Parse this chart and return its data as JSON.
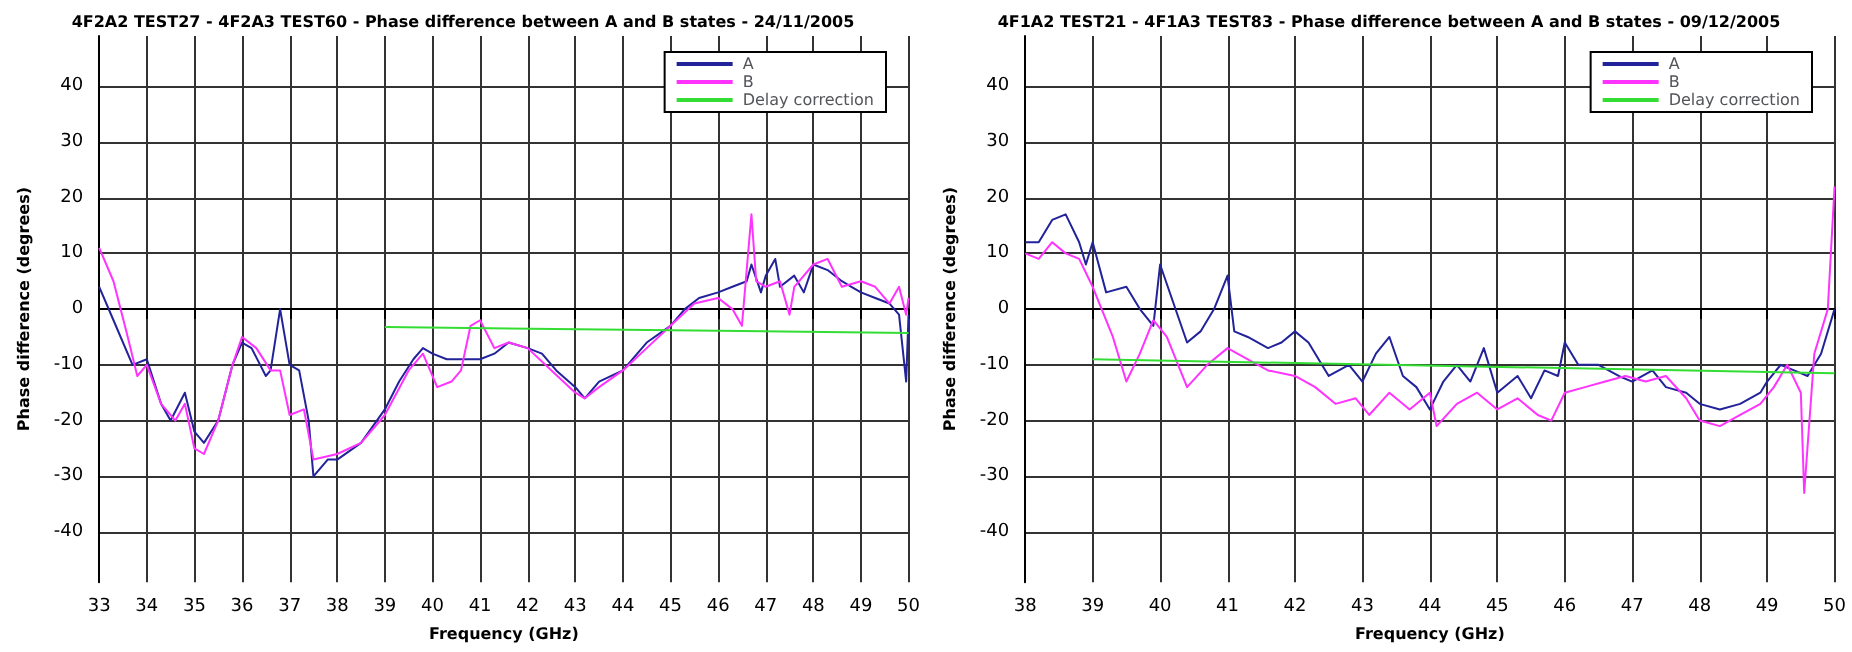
{
  "chart_data": [
    {
      "type": "line",
      "title": "4F2A2 TEST27 - 4F2A3 TEST60 - Phase difference between A and B states - 24/11/2005",
      "xlabel": "Frequency (GHz)",
      "ylabel": "Phase difference (degrees)",
      "xlim": [
        33,
        50
      ],
      "xticks": [
        33,
        34,
        35,
        36,
        37,
        38,
        39,
        40,
        41,
        42,
        43,
        44,
        45,
        46,
        47,
        48,
        49,
        50
      ],
      "ylim": [
        -49,
        49
      ],
      "yticks": [
        -40,
        -30,
        -20,
        -10,
        0,
        10,
        20,
        30,
        40
      ],
      "grid": true,
      "legend": "top right",
      "marker": "none",
      "line_style": "solid",
      "series": [
        {
          "name": "A",
          "color": "#22229a",
          "x": [
            33,
            33.3,
            33.7,
            34,
            34.3,
            34.5,
            34.8,
            35,
            35.2,
            35.5,
            35.8,
            36,
            36.2,
            36.5,
            36.6,
            36.8,
            37,
            37.2,
            37.4,
            37.5,
            37.8,
            38,
            38.5,
            39,
            39.3,
            39.6,
            39.8,
            40,
            40.3,
            40.6,
            41,
            41.3,
            41.6,
            42,
            42.3,
            42.6,
            43,
            43.2,
            43.5,
            44,
            44.5,
            45,
            45.3,
            45.6,
            46,
            46.3,
            46.6,
            46.7,
            46.9,
            47,
            47.2,
            47.3,
            47.6,
            47.8,
            48,
            48.3,
            48.6,
            48.8,
            49,
            49.3,
            49.6,
            49.8,
            49.95,
            50
          ],
          "values": [
            4,
            -2,
            -10,
            -9,
            -17,
            -20,
            -15,
            -22,
            -24,
            -20,
            -10,
            -6,
            -7,
            -12,
            -11,
            0,
            -10,
            -11,
            -20,
            -30,
            -27,
            -27,
            -24,
            -18,
            -13,
            -9,
            -7,
            -8,
            -9,
            -9,
            -9,
            -8,
            -6,
            -7,
            -8,
            -11,
            -14,
            -16,
            -13,
            -11,
            -6,
            -3,
            0,
            2,
            3,
            4,
            5,
            8,
            3,
            6,
            9,
            4,
            6,
            3,
            8,
            7,
            5,
            4,
            3,
            2,
            1,
            -1,
            -13,
            -1
          ]
        },
        {
          "name": "B",
          "color": "#ff33ff",
          "x": [
            33,
            33.3,
            33.6,
            33.8,
            34,
            34.3,
            34.6,
            34.8,
            35,
            35.2,
            35.5,
            35.8,
            36,
            36.3,
            36.6,
            36.8,
            37,
            37.3,
            37.5,
            38,
            38.5,
            39,
            39.5,
            39.8,
            40.1,
            40.4,
            40.6,
            40.8,
            41,
            41.3,
            41.6,
            42,
            42.5,
            43,
            43.2,
            43.5,
            44,
            44.5,
            45,
            45.5,
            46,
            46.3,
            46.5,
            46.7,
            46.8,
            47,
            47.3,
            47.5,
            47.6,
            48,
            48.3,
            48.6,
            49,
            49.3,
            49.6,
            49.8,
            49.95,
            50
          ],
          "values": [
            11,
            5,
            -5,
            -12,
            -10,
            -17,
            -20,
            -17,
            -25,
            -26,
            -20,
            -10,
            -5,
            -7,
            -11,
            -11,
            -19,
            -18,
            -27,
            -26,
            -24,
            -19,
            -11,
            -8,
            -14,
            -13,
            -11,
            -3,
            -2,
            -7,
            -6,
            -7,
            -11,
            -15,
            -16,
            -14,
            -11,
            -7,
            -3,
            1,
            2,
            0,
            -3,
            17,
            5,
            4,
            5,
            -1,
            4,
            8,
            9,
            4,
            5,
            4,
            1,
            4,
            -1,
            2
          ]
        },
        {
          "name": "Delay correction",
          "color": "#33dd33",
          "x": [
            39,
            50
          ],
          "values": [
            -3.2,
            -4.3
          ]
        }
      ]
    },
    {
      "type": "line",
      "title": "4F1A2 TEST21 - 4F1A3 TEST83 - Phase difference between A and B states - 09/12/2005",
      "xlabel": "Frequency (GHz)",
      "ylabel": "Phase difference (degrees)",
      "xlim": [
        38,
        50
      ],
      "xticks": [
        38,
        39,
        40,
        41,
        42,
        43,
        44,
        45,
        46,
        47,
        48,
        49,
        50
      ],
      "ylim": [
        -49,
        49
      ],
      "yticks": [
        -40,
        -30,
        -20,
        -10,
        0,
        10,
        20,
        30,
        40
      ],
      "grid": true,
      "legend": "top right",
      "marker": "none",
      "line_style": "solid",
      "series": [
        {
          "name": "A",
          "color": "#22229a",
          "x": [
            38,
            38.2,
            38.4,
            38.6,
            38.8,
            38.9,
            39,
            39.2,
            39.5,
            39.7,
            39.9,
            40,
            40.2,
            40.4,
            40.6,
            40.8,
            41,
            41.1,
            41.3,
            41.6,
            41.8,
            42,
            42.2,
            42.5,
            42.8,
            43,
            43.2,
            43.4,
            43.6,
            43.8,
            44,
            44.2,
            44.4,
            44.6,
            44.8,
            45,
            45.3,
            45.5,
            45.7,
            45.9,
            46,
            46.2,
            46.5,
            46.8,
            47,
            47.3,
            47.5,
            47.8,
            48,
            48.3,
            48.6,
            48.9,
            49,
            49.2,
            49.4,
            49.6,
            49.8,
            50
          ],
          "values": [
            12,
            12,
            16,
            17,
            12,
            8,
            12,
            3,
            4,
            0,
            -3,
            8,
            1,
            -6,
            -4,
            0,
            6,
            -4,
            -5,
            -7,
            -6,
            -4,
            -6,
            -12,
            -10,
            -13,
            -8,
            -5,
            -12,
            -14,
            -18,
            -13,
            -10,
            -13,
            -7,
            -15,
            -12,
            -16,
            -11,
            -12,
            -6,
            -10,
            -10,
            -12,
            -13,
            -11,
            -14,
            -15,
            -17,
            -18,
            -17,
            -15,
            -13,
            -10,
            -11,
            -12,
            -8,
            0
          ]
        },
        {
          "name": "B",
          "color": "#ff33ff",
          "x": [
            38,
            38.2,
            38.4,
            38.6,
            38.8,
            39,
            39.3,
            39.5,
            39.7,
            39.9,
            40.1,
            40.4,
            40.7,
            41,
            41.3,
            41.6,
            42,
            42.3,
            42.6,
            42.9,
            43.1,
            43.4,
            43.7,
            44,
            44.1,
            44.4,
            44.7,
            45,
            45.3,
            45.6,
            45.8,
            46,
            46.3,
            46.6,
            46.9,
            47.2,
            47.5,
            47.8,
            48,
            48.3,
            48.6,
            48.9,
            49.1,
            49.3,
            49.5,
            49.55,
            49.7,
            49.9,
            50
          ],
          "values": [
            10,
            9,
            12,
            10,
            9,
            4,
            -5,
            -13,
            -8,
            -2,
            -5,
            -14,
            -10,
            -7,
            -9,
            -11,
            -12,
            -14,
            -17,
            -16,
            -19,
            -15,
            -18,
            -15,
            -21,
            -17,
            -15,
            -18,
            -16,
            -19,
            -20,
            -15,
            -14,
            -13,
            -12,
            -13,
            -12,
            -16,
            -20,
            -21,
            -19,
            -17,
            -14,
            -10,
            -15,
            -33,
            -8,
            0,
            22
          ]
        },
        {
          "name": "Delay correction",
          "color": "#33dd33",
          "x": [
            39,
            50
          ],
          "values": [
            -9,
            -11.5
          ]
        }
      ]
    }
  ]
}
